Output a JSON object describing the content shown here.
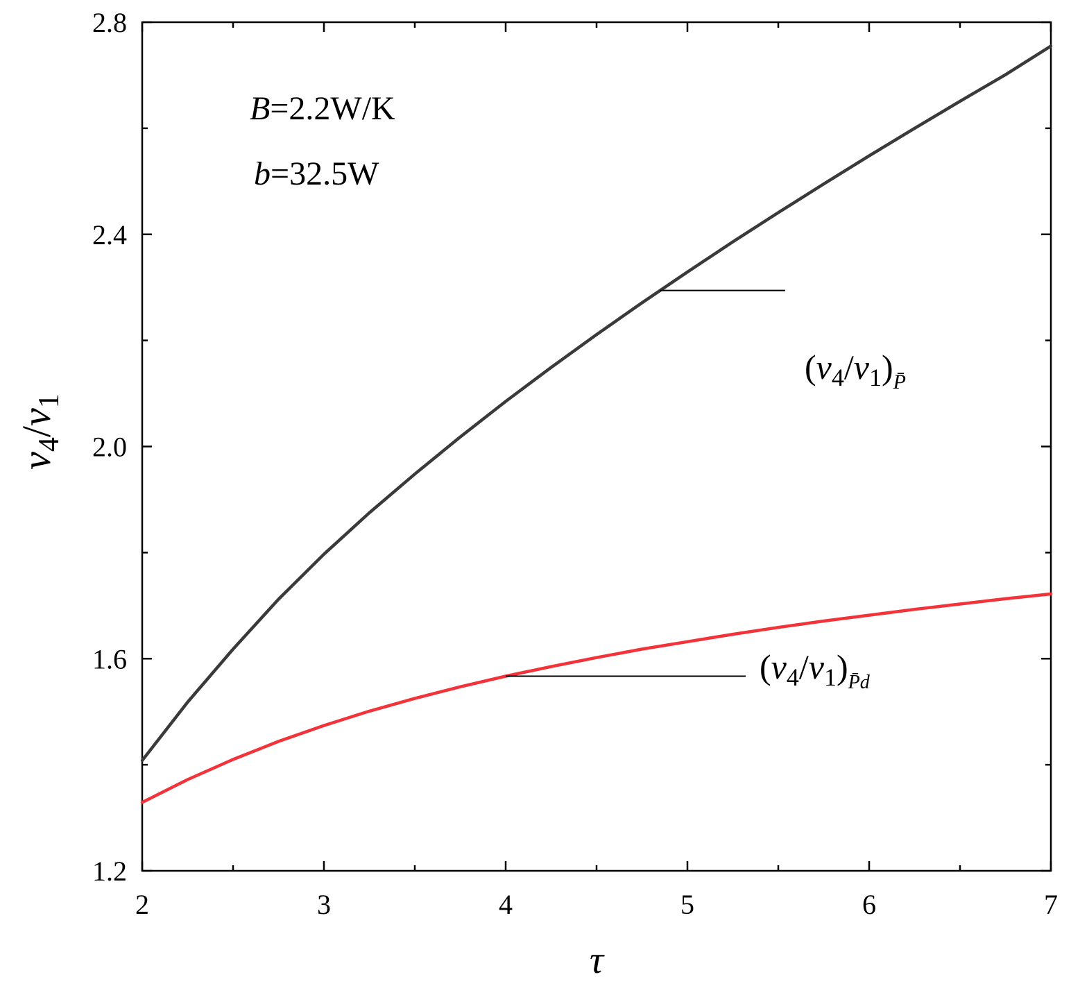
{
  "chart_data": {
    "type": "line",
    "xlabel": "τ",
    "ylabel": {
      "var": "v",
      "num_sub": "4",
      "slash": "/",
      "den_sub": "1"
    },
    "xlim": [
      2,
      7
    ],
    "ylim": [
      1.2,
      2.8
    ],
    "x_ticks": [
      2,
      3,
      4,
      5,
      6,
      7
    ],
    "y_ticks": [
      1.2,
      1.6,
      2.0,
      2.4,
      2.8
    ],
    "x_tick_labels": [
      "2",
      "3",
      "4",
      "5",
      "6",
      "7"
    ],
    "y_tick_labels": [
      "1.2",
      "1.6",
      "2.0",
      "2.4",
      "2.8"
    ],
    "grid": false,
    "annotations": [
      {
        "symbol": "B",
        "text": "=2.2W/K"
      },
      {
        "symbol": "b",
        "text": "=32.5W"
      }
    ],
    "series": [
      {
        "label": {
          "open": "(",
          "var": "v",
          "sub1": "4",
          "slash": "/",
          "sub2": "1",
          "close": ")",
          "subscript": "P̄"
        },
        "color": "#3a3a3a",
        "x": [
          2,
          2.25,
          2.5,
          2.75,
          3,
          3.25,
          3.5,
          3.75,
          4,
          4.25,
          4.5,
          4.75,
          5,
          5.25,
          5.5,
          5.75,
          6,
          6.25,
          6.5,
          6.75,
          7
        ],
        "y": [
          1.408,
          1.518,
          1.618,
          1.712,
          1.797,
          1.875,
          1.948,
          2.018,
          2.085,
          2.149,
          2.211,
          2.271,
          2.329,
          2.386,
          2.441,
          2.495,
          2.548,
          2.6,
          2.651,
          2.701,
          2.755
        ]
      },
      {
        "label": {
          "open": "(",
          "var": "v",
          "sub1": "4",
          "slash": "/",
          "sub2": "1",
          "close": ")",
          "subscript": "P̄d"
        },
        "color": "#f2333a",
        "x": [
          2,
          2.25,
          2.5,
          2.75,
          3,
          3.25,
          3.5,
          3.75,
          4,
          4.25,
          4.5,
          4.75,
          5,
          5.25,
          5.5,
          5.75,
          6,
          6.25,
          6.5,
          6.75,
          7
        ],
        "y": [
          1.329,
          1.372,
          1.41,
          1.444,
          1.474,
          1.501,
          1.525,
          1.547,
          1.567,
          1.585,
          1.602,
          1.618,
          1.632,
          1.646,
          1.659,
          1.671,
          1.682,
          1.693,
          1.703,
          1.713,
          1.722
        ]
      }
    ]
  }
}
